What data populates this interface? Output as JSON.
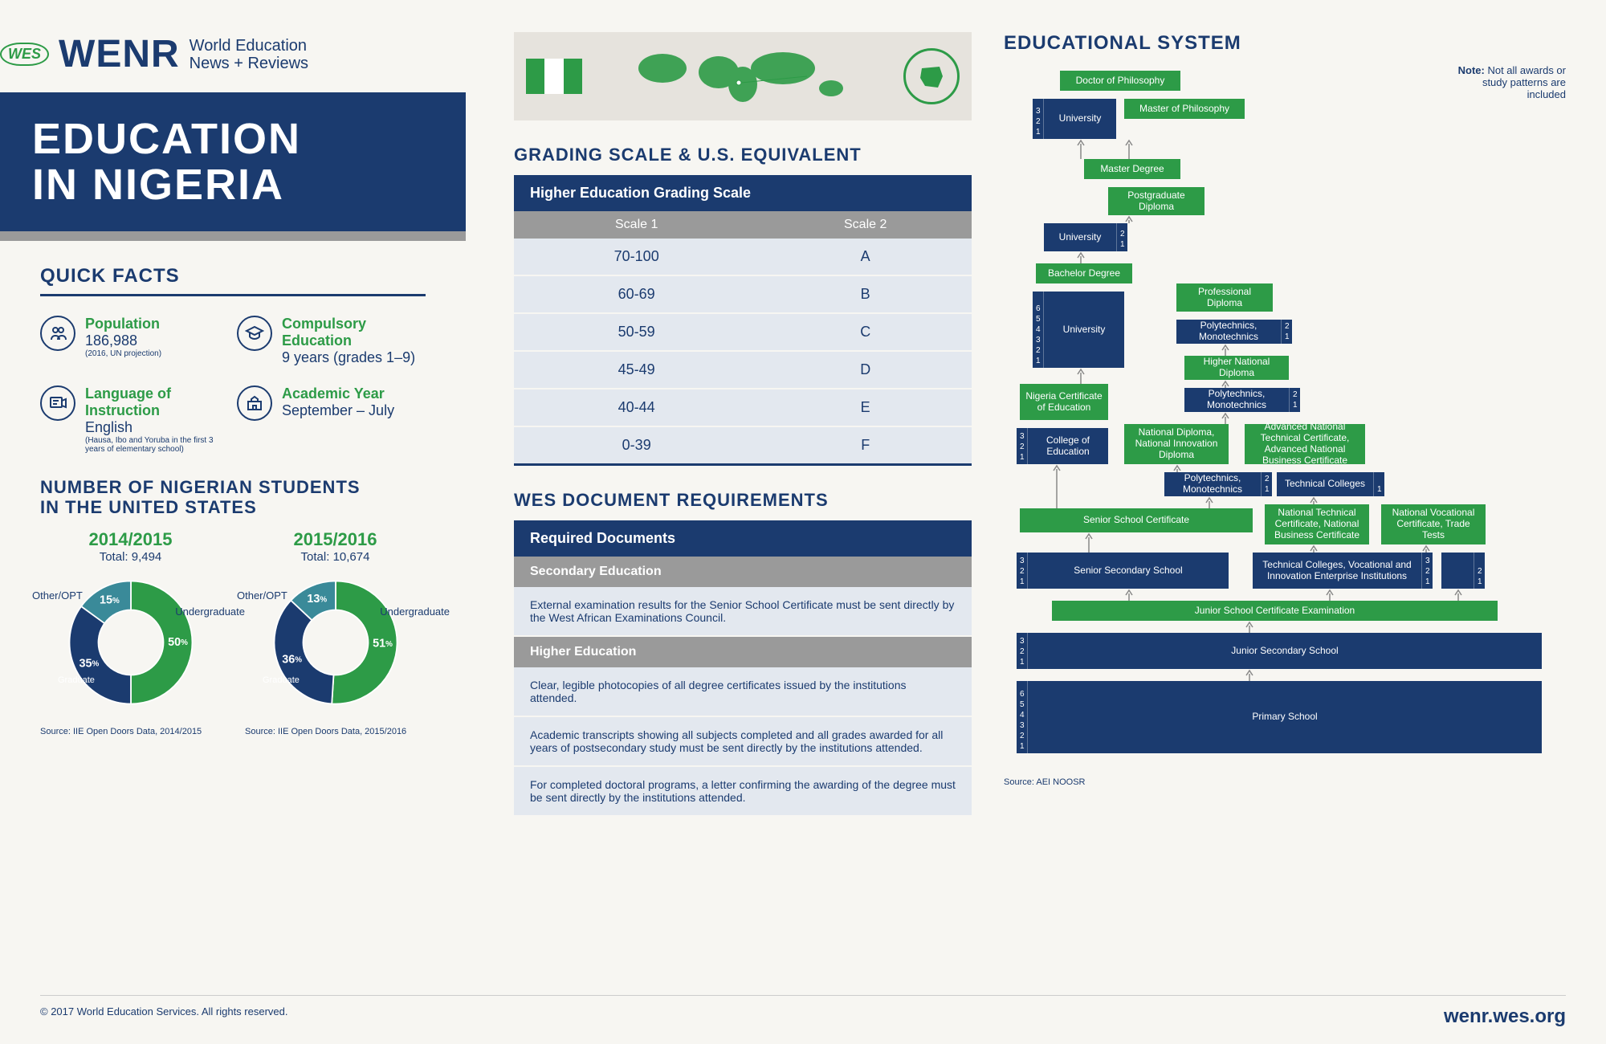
{
  "header": {
    "badge": "WES",
    "brand": "WENR",
    "subtitle1": "World Education",
    "subtitle2": "News + Reviews"
  },
  "title": {
    "line1": "EDUCATION",
    "line2": "IN NIGERIA"
  },
  "quick_facts": {
    "heading": "QUICK FACTS",
    "facts": [
      {
        "label": "Population",
        "value": "186,988",
        "note": "(2016, UN projection)"
      },
      {
        "label": "Compulsory Education",
        "value": "9 years (grades 1–9)",
        "note": ""
      },
      {
        "label": "Language of Instruction",
        "value": "English",
        "note": "(Hausa, Ibo and Yoruba in the first 3 years of elementary school)"
      },
      {
        "label": "Academic Year",
        "value": "September – July",
        "note": ""
      }
    ]
  },
  "students": {
    "heading1": "NUMBER OF NIGERIAN STUDENTS",
    "heading2": "IN THE UNITED STATES",
    "charts": [
      {
        "year": "2014/2015",
        "total": "Total: 9,494",
        "segments": [
          {
            "label": "Undergraduate",
            "pct": 50,
            "color": "#2d9b47"
          },
          {
            "label": "Graduate",
            "pct": 35,
            "color": "#1b3b6f"
          },
          {
            "label": "Other/OPT",
            "pct": 15,
            "color": "#3a8a99"
          }
        ],
        "source": "Source: IIE Open Doors Data, 2014/2015"
      },
      {
        "year": "2015/2016",
        "total": "Total: 10,674",
        "segments": [
          {
            "label": "Undergraduate",
            "pct": 51,
            "color": "#2d9b47"
          },
          {
            "label": "Graduate",
            "pct": 36,
            "color": "#1b3b6f"
          },
          {
            "label": "Other/OPT",
            "pct": 13,
            "color": "#3a8a99"
          }
        ],
        "source": "Source: IIE Open Doors Data, 2015/2016"
      }
    ]
  },
  "grading": {
    "heading": "GRADING SCALE & U.S. EQUIVALENT",
    "table_title": "Higher Education Grading Scale",
    "col1": "Scale 1",
    "col2": "Scale 2",
    "rows": [
      [
        "70-100",
        "A"
      ],
      [
        "60-69",
        "B"
      ],
      [
        "50-59",
        "C"
      ],
      [
        "45-49",
        "D"
      ],
      [
        "40-44",
        "E"
      ],
      [
        "0-39",
        "F"
      ]
    ]
  },
  "docs": {
    "heading": "WES DOCUMENT REQUIREMENTS",
    "title": "Required Documents",
    "sec1": "Secondary Education",
    "sec1_text": "External examination results for the Senior School Certificate must be sent directly by the West African Examinations Council.",
    "sec2": "Higher Education",
    "sec2_rows": [
      "Clear, legible photocopies of all degree certificates issued by the institutions attended.",
      "Academic transcripts showing all subjects completed and all grades awarded for all years of postsecondary study must be sent directly by the institutions attended.",
      "For completed doctoral programs, a letter confirming the awarding of the degree must be sent directly by the institutions attended."
    ]
  },
  "edu_system": {
    "heading": "EDUCATIONAL SYSTEM",
    "note_label": "Note:",
    "note_text": "Not all awards or study patterns are included",
    "source": "Source: AEI NOOSR",
    "boxes": {
      "doctor": "Doctor of Philosophy",
      "master_phil": "Master of Philosophy",
      "university_top": "University",
      "master_deg": "Master Degree",
      "postgrad_dip": "Postgraduate Diploma",
      "university_mid": "University",
      "bachelor": "Bachelor Degree",
      "prof_dip": "Professional Diploma",
      "university_bach": "University",
      "poly1": "Polytechnics, Monotechnics",
      "hnd": "Higher National Diploma",
      "nce": "Nigeria Certificate of Education",
      "poly2": "Polytechnics, Monotechnics",
      "college_ed": "College of Education",
      "nd": "National Diploma, National Innovation Diploma",
      "antc": "Advanced National Technical Certificate, Advanced National Business Certificate",
      "poly3": "Polytechnics, Monotechnics",
      "tech_col1": "Technical Colleges",
      "ssc": "Senior School Certificate",
      "ntc": "National Technical Certificate, National Business Certificate",
      "nvc": "National Vocational Certificate, Trade Tests",
      "sss": "Senior Secondary School",
      "tcvie": "Technical Colleges, Vocational and Innovation Enterprise Institutions",
      "jsce": "Junior School Certificate Examination",
      "jss": "Junior Secondary School",
      "primary": "Primary School"
    }
  },
  "colors": {
    "navy": "#1b3b6f",
    "green": "#2d9b47",
    "grey": "#9a9a9a",
    "lightblue": "#e3e8ef",
    "bg": "#f7f6f2",
    "teal": "#3a8a99"
  },
  "footer": {
    "copyright": "© 2017 World Education Services. All rights reserved.",
    "url": "wenr.wes.org"
  }
}
